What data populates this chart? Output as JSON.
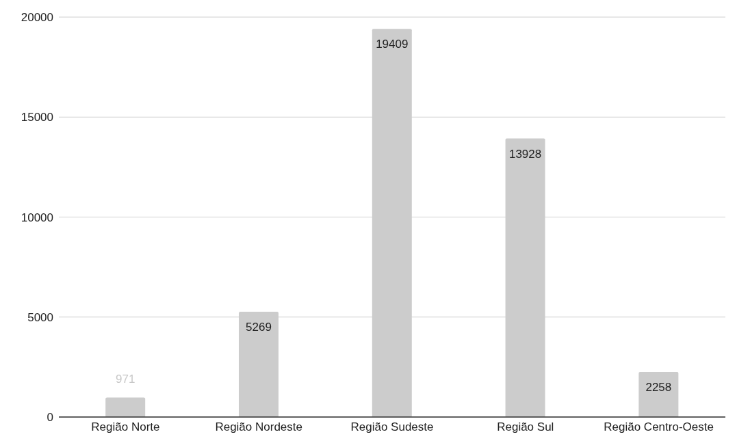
{
  "chart_data": {
    "type": "bar",
    "categories": [
      "Região Norte",
      "Região Nordeste",
      "Região Sudeste",
      "Região Sul",
      "Região Centro-Oeste"
    ],
    "values": [
      971,
      5269,
      19409,
      13928,
      2258
    ],
    "color": "#cccccc",
    "ylim": [
      0,
      20000
    ],
    "yticks": [
      0,
      5000,
      10000,
      15000,
      20000
    ],
    "grid": "y",
    "data_labels": true
  }
}
